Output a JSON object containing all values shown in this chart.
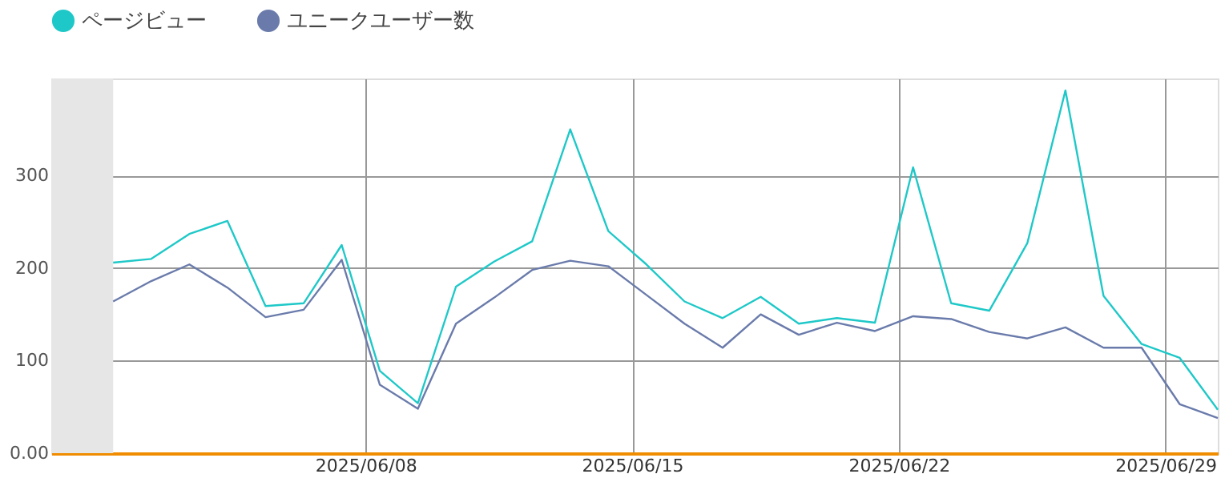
{
  "chart_data": {
    "type": "line",
    "x": [
      "2025-06-01T09:00",
      "2025-06-02T09:00",
      "2025-06-03T09:00",
      "2025-06-04T09:00",
      "2025-06-05T09:00",
      "2025-06-06T09:00",
      "2025-06-07T09:00",
      "2025-06-08T09:00",
      "2025-06-09T09:00",
      "2025-06-10T09:00",
      "2025-06-11T09:00",
      "2025-06-12T09:00",
      "2025-06-13T09:00",
      "2025-06-14T09:00",
      "2025-06-15T09:00",
      "2025-06-16T09:00",
      "2025-06-17T09:00",
      "2025-06-18T09:00",
      "2025-06-19T09:00",
      "2025-06-20T09:00",
      "2025-06-21T09:00",
      "2025-06-22T09:00",
      "2025-06-23T09:00",
      "2025-06-24T09:00",
      "2025-06-25T09:00",
      "2025-06-26T09:00",
      "2025-06-27T09:00",
      "2025-06-28T09:00",
      "2025-06-29T09:00",
      "2025-06-30T09:00"
    ],
    "series": [
      {
        "name": "ページビュー",
        "color": "#1fc8c8",
        "values": [
          206,
          210,
          237,
          251,
          159,
          162,
          225,
          89,
          54,
          180,
          207,
          229,
          350,
          240,
          204,
          164,
          146,
          169,
          140,
          146,
          141,
          309,
          162,
          154,
          227,
          392,
          170,
          118,
          103,
          47
        ]
      },
      {
        "name": "ユニークユーザー数",
        "color": "#6a7bab",
        "values": [
          164,
          186,
          204,
          179,
          147,
          155,
          209,
          74,
          48,
          140,
          168,
          198,
          208,
          202,
          171,
          140,
          114,
          150,
          128,
          141,
          132,
          148,
          145,
          131,
          124,
          136,
          114,
          114,
          53,
          38
        ]
      }
    ],
    "xlim": [
      "2025-05-30T18:00",
      "2025-06-30T09:00"
    ],
    "xticks": [
      {
        "value": "2025-06-08",
        "label": "2025/06/08"
      },
      {
        "value": "2025-06-15",
        "label": "2025/06/15"
      },
      {
        "value": "2025-06-22",
        "label": "2025/06/22"
      },
      {
        "value": "2025-06-29",
        "label": "2025/06/29"
      }
    ],
    "ylim": [
      0,
      405
    ],
    "yticks": [
      {
        "value": 0,
        "label": "0.00"
      },
      100,
      200,
      300
    ],
    "bands": [
      {
        "axis": "x",
        "from": "2025-05-30T18:00",
        "to": "2025-06-01T09:00",
        "label": null,
        "color": "#e6e6e6"
      }
    ],
    "grid": true,
    "legend": "top left",
    "marker": "none",
    "line_style": "solid"
  }
}
